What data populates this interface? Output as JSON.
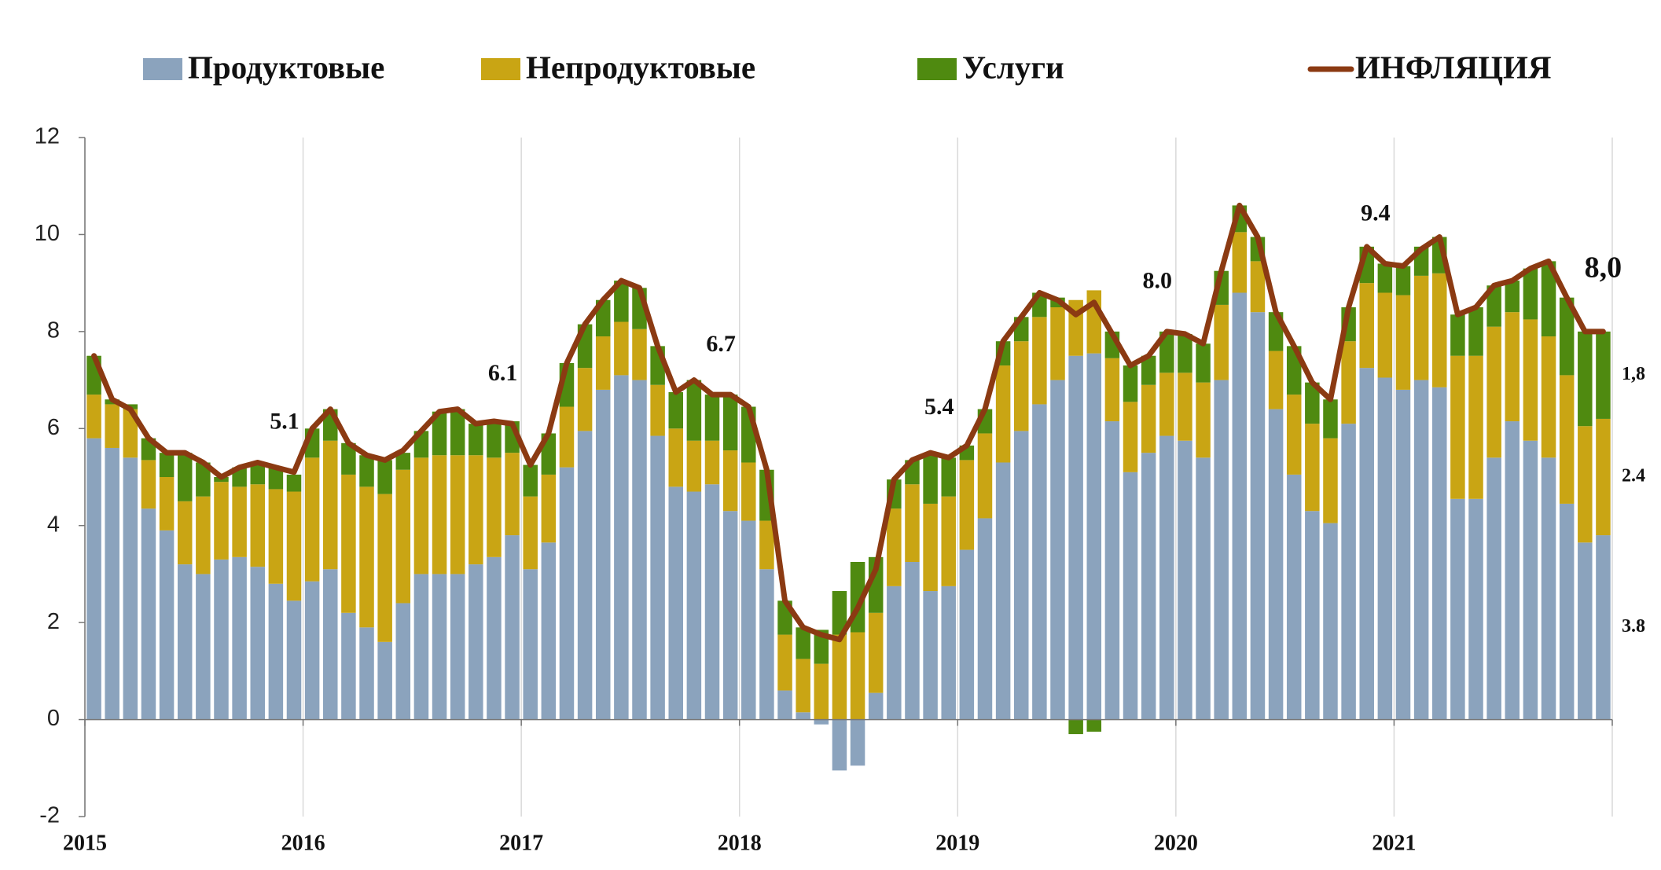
{
  "chart_data": {
    "type": "stacked_bar_line",
    "categories": [
      "2015",
      null,
      null,
      null,
      null,
      null,
      null,
      null,
      null,
      null,
      null,
      null,
      "2016",
      null,
      null,
      null,
      null,
      null,
      null,
      null,
      null,
      null,
      null,
      null,
      "2017",
      null,
      null,
      null,
      null,
      null,
      null,
      null,
      null,
      null,
      null,
      null,
      "2018",
      null,
      null,
      null,
      null,
      null,
      null,
      null,
      null,
      null,
      null,
      null,
      "2019",
      null,
      null,
      null,
      null,
      null,
      null,
      null,
      null,
      null,
      null,
      null,
      "2020",
      null,
      null,
      null,
      null,
      null,
      null,
      null,
      null,
      null,
      null,
      null,
      "2021",
      null,
      null,
      null,
      null,
      null,
      null,
      null,
      null,
      null,
      null,
      null
    ],
    "ylim": [
      -2,
      12
    ],
    "yticks": [
      -2,
      0,
      2,
      4,
      6,
      8,
      10,
      12
    ],
    "legend": "top",
    "series": [
      {
        "name": "Продуктовые",
        "color": "#8ba3bd",
        "kind": "bar",
        "values": [
          5.8,
          5.6,
          5.4,
          4.35,
          3.9,
          3.2,
          3.0,
          3.3,
          3.35,
          3.15,
          2.8,
          2.45,
          2.85,
          3.1,
          2.2,
          1.9,
          1.6,
          2.4,
          3.0,
          3.0,
          3.0,
          3.2,
          3.35,
          3.8,
          3.1,
          3.65,
          5.2,
          5.95,
          6.8,
          7.1,
          7.0,
          5.85,
          4.8,
          4.7,
          4.85,
          4.3,
          4.1,
          3.1,
          0.6,
          0.15,
          -0.1,
          -1.05,
          -0.95,
          0.55,
          2.75,
          3.25,
          2.65,
          2.75,
          3.5,
          4.15,
          5.3,
          5.95,
          6.5,
          7.0,
          7.5,
          7.55,
          6.15,
          5.1,
          5.5,
          5.85,
          5.75,
          5.4,
          7.0,
          8.8,
          8.4,
          6.4,
          5.05,
          4.3,
          4.05,
          6.1,
          7.25,
          7.05,
          6.8,
          7.0,
          6.85,
          4.55,
          4.55,
          5.4,
          6.15,
          5.75,
          5.4,
          4.45,
          3.65,
          3.8
        ],
        "value_labels": [
          null,
          null,
          null,
          null,
          null,
          null,
          null,
          null,
          null,
          null,
          null,
          null,
          null,
          null,
          null,
          null,
          null,
          null,
          null,
          null,
          null,
          null,
          null,
          null,
          null,
          null,
          null,
          null,
          null,
          null,
          null,
          null,
          null,
          null,
          null,
          null,
          null,
          null,
          null,
          null,
          null,
          null,
          null,
          null,
          null,
          null,
          null,
          null,
          null,
          null,
          null,
          null,
          null,
          null,
          null,
          null,
          null,
          null,
          null,
          null,
          null,
          null,
          null,
          null,
          null,
          null,
          null,
          null,
          null,
          null,
          null,
          null,
          null,
          null,
          null,
          null,
          null,
          null,
          null,
          null,
          null,
          null,
          null,
          "3.8"
        ]
      },
      {
        "name": "Непродуктовые",
        "color": "#c9a514",
        "kind": "bar",
        "values": [
          0.9,
          0.9,
          1.0,
          1.0,
          1.1,
          1.3,
          1.6,
          1.6,
          1.45,
          1.7,
          1.95,
          2.25,
          2.55,
          2.65,
          2.85,
          2.9,
          3.05,
          2.75,
          2.4,
          2.45,
          2.45,
          2.25,
          2.05,
          1.7,
          1.5,
          1.4,
          1.25,
          1.3,
          1.1,
          1.1,
          1.05,
          1.05,
          1.2,
          1.05,
          0.9,
          1.25,
          1.2,
          1.0,
          1.15,
          1.1,
          1.15,
          1.75,
          1.8,
          1.65,
          1.6,
          1.6,
          1.8,
          1.85,
          1.85,
          1.75,
          2.0,
          1.85,
          1.8,
          1.5,
          1.15,
          1.3,
          1.3,
          1.45,
          1.4,
          1.3,
          1.4,
          1.55,
          1.55,
          1.25,
          1.05,
          1.2,
          1.65,
          1.8,
          1.75,
          1.7,
          1.75,
          1.75,
          1.95,
          2.15,
          2.35,
          2.95,
          2.95,
          2.7,
          2.25,
          2.5,
          2.5,
          2.65,
          2.4,
          2.4
        ],
        "value_labels": [
          null,
          null,
          null,
          null,
          null,
          null,
          null,
          null,
          null,
          null,
          null,
          null,
          null,
          null,
          null,
          null,
          null,
          null,
          null,
          null,
          null,
          null,
          null,
          null,
          null,
          null,
          null,
          null,
          null,
          null,
          null,
          null,
          null,
          null,
          null,
          null,
          null,
          null,
          null,
          null,
          null,
          null,
          null,
          null,
          null,
          null,
          null,
          null,
          null,
          null,
          null,
          null,
          null,
          null,
          null,
          null,
          null,
          null,
          null,
          null,
          null,
          null,
          null,
          null,
          null,
          null,
          null,
          null,
          null,
          null,
          null,
          null,
          null,
          null,
          null,
          null,
          null,
          null,
          null,
          null,
          null,
          null,
          null,
          "2.4"
        ]
      },
      {
        "name": "Услуги",
        "color": "#4f8a10",
        "kind": "bar",
        "values": [
          0.8,
          0.1,
          0.1,
          0.45,
          0.5,
          1.0,
          0.7,
          0.1,
          0.4,
          0.45,
          0.45,
          0.35,
          0.6,
          0.65,
          0.65,
          0.65,
          0.7,
          0.35,
          0.55,
          0.9,
          0.95,
          0.65,
          0.75,
          0.65,
          0.65,
          0.85,
          0.9,
          0.9,
          0.75,
          0.85,
          0.85,
          0.8,
          0.75,
          1.25,
          0.95,
          1.15,
          1.15,
          1.05,
          0.7,
          0.65,
          0.7,
          0.9,
          1.45,
          1.15,
          0.6,
          0.5,
          1.0,
          0.8,
          0.3,
          0.5,
          0.5,
          0.5,
          0.5,
          0.2,
          -0.3,
          -0.25,
          0.55,
          0.75,
          0.6,
          0.85,
          0.8,
          0.8,
          0.7,
          0.55,
          0.5,
          0.8,
          1.0,
          0.85,
          0.8,
          0.7,
          0.75,
          0.6,
          0.6,
          0.6,
          0.75,
          0.85,
          1.0,
          0.85,
          0.65,
          1.05,
          1.55,
          1.6,
          1.95,
          1.8
        ],
        "value_labels": [
          null,
          null,
          null,
          null,
          null,
          null,
          null,
          null,
          null,
          null,
          null,
          null,
          null,
          null,
          null,
          null,
          null,
          null,
          null,
          null,
          null,
          null,
          null,
          null,
          null,
          null,
          null,
          null,
          null,
          null,
          null,
          null,
          null,
          null,
          null,
          null,
          null,
          null,
          null,
          null,
          null,
          null,
          null,
          null,
          null,
          null,
          null,
          null,
          null,
          null,
          null,
          null,
          null,
          null,
          null,
          null,
          null,
          null,
          null,
          null,
          null,
          null,
          null,
          null,
          null,
          null,
          null,
          null,
          null,
          null,
          null,
          null,
          null,
          null,
          null,
          null,
          null,
          null,
          null,
          null,
          null,
          null,
          null,
          "1,8"
        ]
      },
      {
        "name": "ИНФЛЯЦИЯ",
        "color": "#8b3a12",
        "kind": "line",
        "values": [
          7.5,
          6.6,
          6.4,
          5.8,
          5.5,
          5.5,
          5.3,
          5.0,
          5.2,
          5.3,
          5.2,
          5.1,
          6.0,
          6.4,
          5.7,
          5.45,
          5.35,
          5.55,
          5.95,
          6.35,
          6.4,
          6.1,
          6.15,
          6.1,
          5.25,
          5.9,
          7.35,
          8.15,
          8.65,
          9.05,
          8.9,
          7.7,
          6.75,
          7.0,
          6.7,
          6.7,
          6.45,
          5.15,
          2.45,
          1.9,
          1.75,
          1.65,
          2.3,
          3.1,
          4.95,
          5.35,
          5.5,
          5.4,
          5.65,
          6.4,
          7.8,
          8.3,
          8.8,
          8.65,
          8.35,
          8.6,
          7.95,
          7.3,
          7.5,
          8.0,
          7.95,
          7.75,
          9.25,
          10.6,
          9.95,
          8.4,
          7.7,
          6.95,
          6.6,
          8.5,
          9.75,
          9.4,
          9.35,
          9.7,
          9.95,
          8.35,
          8.5,
          8.95,
          9.05,
          9.3,
          9.45,
          8.7,
          8.0,
          8.0
        ],
        "value_labels": [
          null,
          null,
          null,
          null,
          null,
          null,
          null,
          null,
          null,
          null,
          null,
          "5.1",
          null,
          null,
          null,
          null,
          null,
          null,
          null,
          null,
          null,
          null,
          null,
          "6.1",
          null,
          null,
          null,
          null,
          null,
          null,
          null,
          null,
          null,
          null,
          null,
          "6.7",
          null,
          null,
          null,
          null,
          null,
          null,
          null,
          null,
          null,
          null,
          null,
          "5.4",
          null,
          null,
          null,
          null,
          null,
          null,
          null,
          null,
          null,
          null,
          null,
          "8.0",
          null,
          null,
          null,
          null,
          null,
          null,
          null,
          null,
          null,
          null,
          null,
          "9.4",
          null,
          null,
          null,
          null,
          null,
          null,
          null,
          null,
          null,
          null,
          null,
          "8,0"
        ]
      }
    ]
  }
}
